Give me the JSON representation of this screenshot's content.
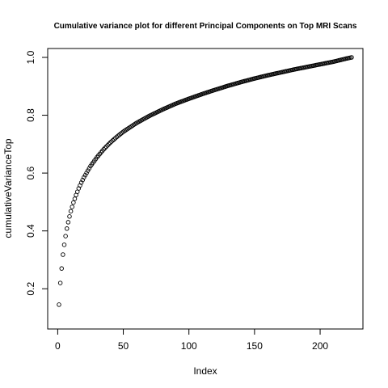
{
  "chart_data": {
    "type": "scatter",
    "title": "Cumulative variance plot for different Principal Components on Top MRI Scans",
    "xlabel": "Index",
    "ylabel": "cumulativeVarianceTop",
    "xlim": [
      1,
      224
    ],
    "ylim": [
      0.1,
      1.0
    ],
    "x_ticks": [
      0,
      50,
      100,
      150,
      200
    ],
    "y_ticks": [
      0.2,
      0.4,
      0.6,
      0.8,
      1.0
    ],
    "x_tick_labels": [
      "0",
      "50",
      "100",
      "150",
      "200"
    ],
    "y_tick_labels": [
      "0.2",
      "0.4",
      "0.6",
      "0.8",
      "1.0"
    ],
    "marker": "open-circle",
    "grid": false,
    "x": [
      1,
      2,
      3,
      4,
      5,
      6,
      7,
      8,
      9,
      10,
      12,
      14,
      16,
      18,
      20,
      25,
      30,
      35,
      40,
      45,
      50,
      60,
      70,
      80,
      90,
      100,
      110,
      120,
      130,
      140,
      150,
      160,
      170,
      180,
      190,
      200,
      210,
      220,
      224
    ],
    "y": [
      0.145,
      0.22,
      0.27,
      0.318,
      0.352,
      0.382,
      0.408,
      0.43,
      0.45,
      0.468,
      0.498,
      0.524,
      0.547,
      0.567,
      0.585,
      0.624,
      0.655,
      0.682,
      0.705,
      0.725,
      0.743,
      0.773,
      0.798,
      0.82,
      0.84,
      0.857,
      0.873,
      0.888,
      0.902,
      0.915,
      0.927,
      0.938,
      0.948,
      0.958,
      0.967,
      0.976,
      0.985,
      0.996,
      1.0
    ]
  }
}
